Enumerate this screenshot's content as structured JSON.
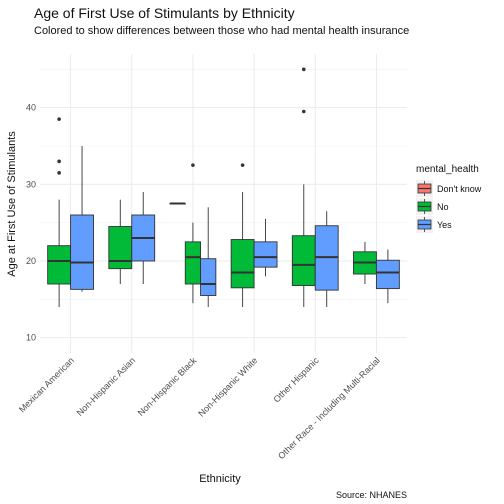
{
  "chart_data": {
    "type": "boxplot",
    "title": "Age of First Use of Stimulants by Ethnicity",
    "subtitle": "Colored to show differences between those who had mental health insurance",
    "xlabel": "Ethnicity",
    "ylabel": "Age at First Use of Stimulants",
    "caption": "Source: NHANES",
    "ylim": [
      8,
      47
    ],
    "yticks": [
      10,
      20,
      30,
      40
    ],
    "grid": true,
    "legend": {
      "title": "mental_health",
      "position": "right",
      "entries": [
        {
          "label": "Don't know",
          "color": "#F8766D"
        },
        {
          "label": "No",
          "color": "#00BA38"
        },
        {
          "label": "Yes",
          "color": "#619CFF"
        }
      ]
    },
    "categories": [
      "Mexican American",
      "Non-Hispanic Asian",
      "Non-Hispanic Black",
      "Non-Hispanic White",
      "Other Hispanic",
      "Other Race - Including Multi-Racial"
    ],
    "groups": [
      {
        "category": "Mexican American",
        "boxes": [
          {
            "series": "No",
            "lower_whisker": 14,
            "q1": 17,
            "median": 20,
            "q3": 22,
            "upper_whisker": 28,
            "outliers": [
              31.5,
              33,
              38.5
            ]
          },
          {
            "series": "Yes",
            "lower_whisker": 16,
            "q1": 16.3,
            "median": 19.8,
            "q3": 26,
            "upper_whisker": 35,
            "outliers": []
          }
        ]
      },
      {
        "category": "Non-Hispanic Asian",
        "boxes": [
          {
            "series": "No",
            "lower_whisker": 17,
            "q1": 19,
            "median": 20,
            "q3": 24.5,
            "upper_whisker": 28,
            "outliers": []
          },
          {
            "series": "Yes",
            "lower_whisker": 17,
            "q1": 20,
            "median": 23,
            "q3": 26,
            "upper_whisker": 29,
            "outliers": []
          }
        ]
      },
      {
        "category": "Non-Hispanic Black",
        "boxes": [
          {
            "series": "Don't know",
            "lower_whisker": 27.5,
            "q1": 27.5,
            "median": 27.5,
            "q3": 27.5,
            "upper_whisker": 27.5,
            "outliers": []
          },
          {
            "series": "No",
            "lower_whisker": 14.5,
            "q1": 17,
            "median": 20.5,
            "q3": 22.5,
            "upper_whisker": 25,
            "outliers": [
              32.5
            ]
          },
          {
            "series": "Yes",
            "lower_whisker": 14,
            "q1": 15.5,
            "median": 17,
            "q3": 20.3,
            "upper_whisker": 27,
            "outliers": []
          }
        ]
      },
      {
        "category": "Non-Hispanic White",
        "boxes": [
          {
            "series": "No",
            "lower_whisker": 14,
            "q1": 16.5,
            "median": 18.5,
            "q3": 22.8,
            "upper_whisker": 29,
            "outliers": [
              32.5
            ]
          },
          {
            "series": "Yes",
            "lower_whisker": 18,
            "q1": 19.2,
            "median": 20.5,
            "q3": 22.5,
            "upper_whisker": 25.5,
            "outliers": []
          }
        ]
      },
      {
        "category": "Other Hispanic",
        "boxes": [
          {
            "series": "No",
            "lower_whisker": 14,
            "q1": 16.8,
            "median": 19.5,
            "q3": 23.3,
            "upper_whisker": 30,
            "outliers": [
              39.5,
              45
            ]
          },
          {
            "series": "Yes",
            "lower_whisker": 14,
            "q1": 16.2,
            "median": 20.5,
            "q3": 24.6,
            "upper_whisker": 26.5,
            "outliers": []
          }
        ]
      },
      {
        "category": "Other Race - Including Multi-Racial",
        "boxes": [
          {
            "series": "No",
            "lower_whisker": 17,
            "q1": 18.3,
            "median": 19.8,
            "q3": 21.2,
            "upper_whisker": 22.5,
            "outliers": []
          },
          {
            "series": "Yes",
            "lower_whisker": 14.5,
            "q1": 16.4,
            "median": 18.5,
            "q3": 20.1,
            "upper_whisker": 21.5,
            "outliers": []
          }
        ]
      }
    ]
  }
}
